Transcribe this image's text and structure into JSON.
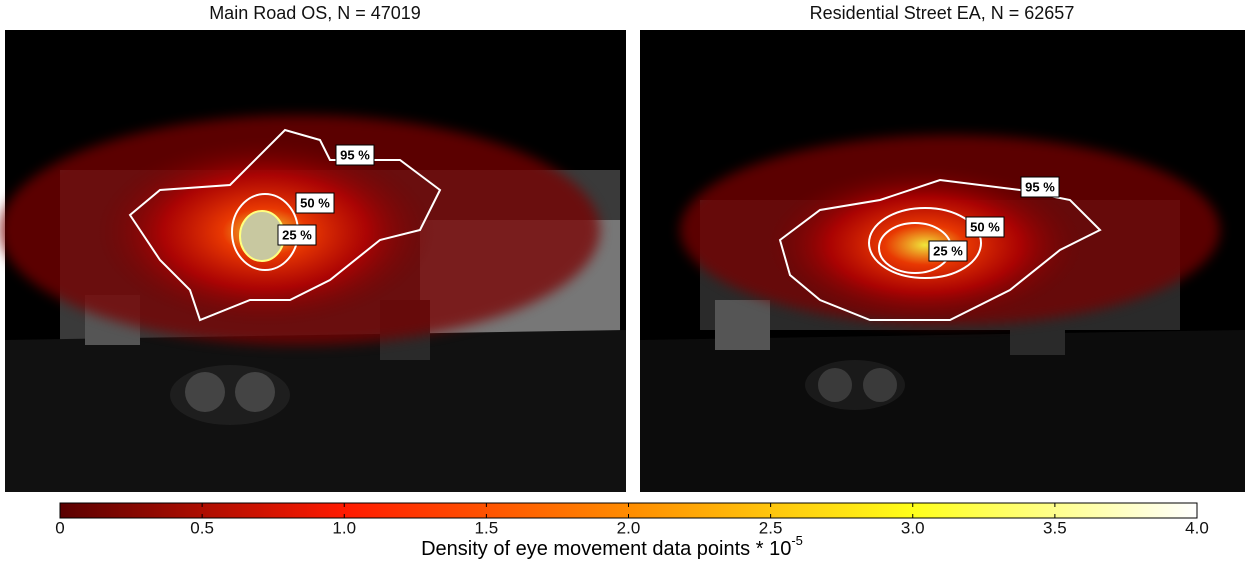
{
  "chart_data": {
    "type": "heatmap",
    "panels": [
      {
        "title": "Main Road OS, N = 47019",
        "contours": [
          "95 %",
          "50 %",
          "25 %"
        ]
      },
      {
        "title": "Residential Street EA, N = 62657",
        "contours": [
          "95 %",
          "50 %",
          "25 %"
        ]
      }
    ],
    "colorbar": {
      "label": "Density of eye movement data points * 10",
      "label_exponent": "-5",
      "lim": [
        0,
        4
      ],
      "ticks": [
        0,
        0.5,
        {
          "value": 1,
          "label": "1.0"
        },
        1.5,
        {
          "value": 2,
          "label": "2.0"
        },
        2.5,
        {
          "value": 3,
          "label": "3.0"
        },
        3.5,
        {
          "value": 4,
          "label": "4.0"
        }
      ],
      "colors": [
        "#5a0000",
        "#ff1a00",
        "#ff8c00",
        "#ffff1a",
        "#ffffff"
      ]
    }
  }
}
